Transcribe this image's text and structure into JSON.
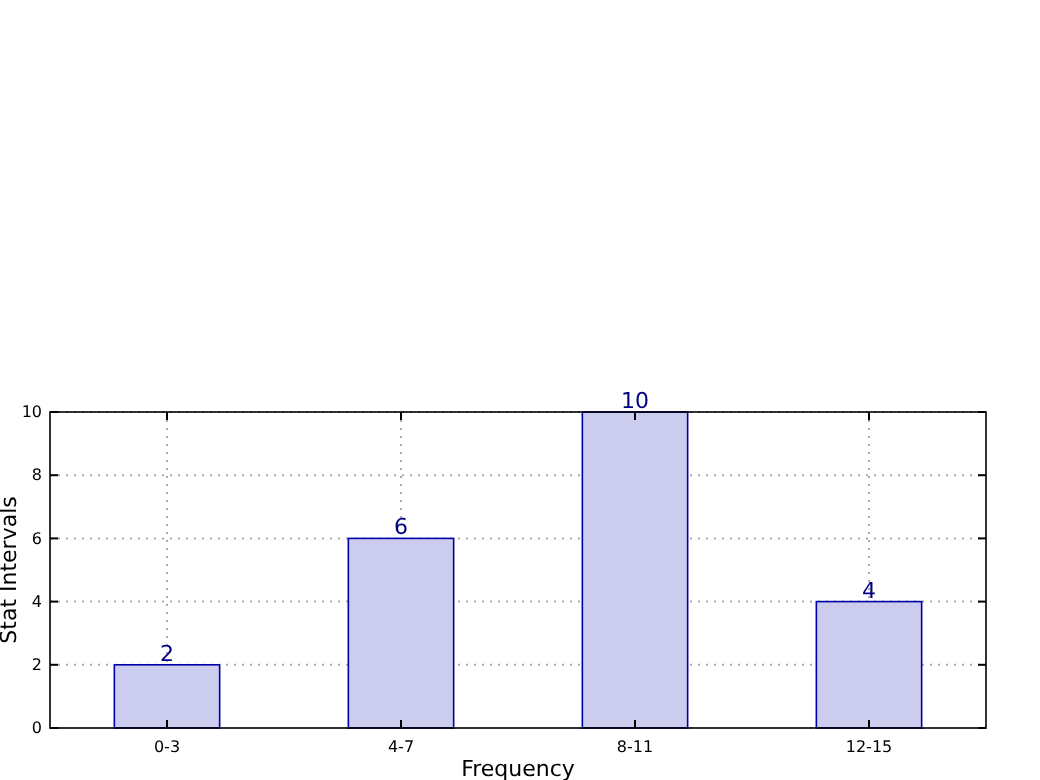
{
  "chart_data": {
    "type": "bar",
    "xlabel": "Frequency",
    "ylabel": "Stat Intervals",
    "categories": [
      "0-3",
      "4-7",
      "8-11",
      "12-15"
    ],
    "values": [
      2,
      6,
      10,
      4
    ],
    "color": "#ccccee",
    "ylim": [
      0,
      10
    ],
    "yticks": [
      0,
      2,
      4,
      6,
      8,
      10
    ],
    "grid": true,
    "data_labels": true
  }
}
